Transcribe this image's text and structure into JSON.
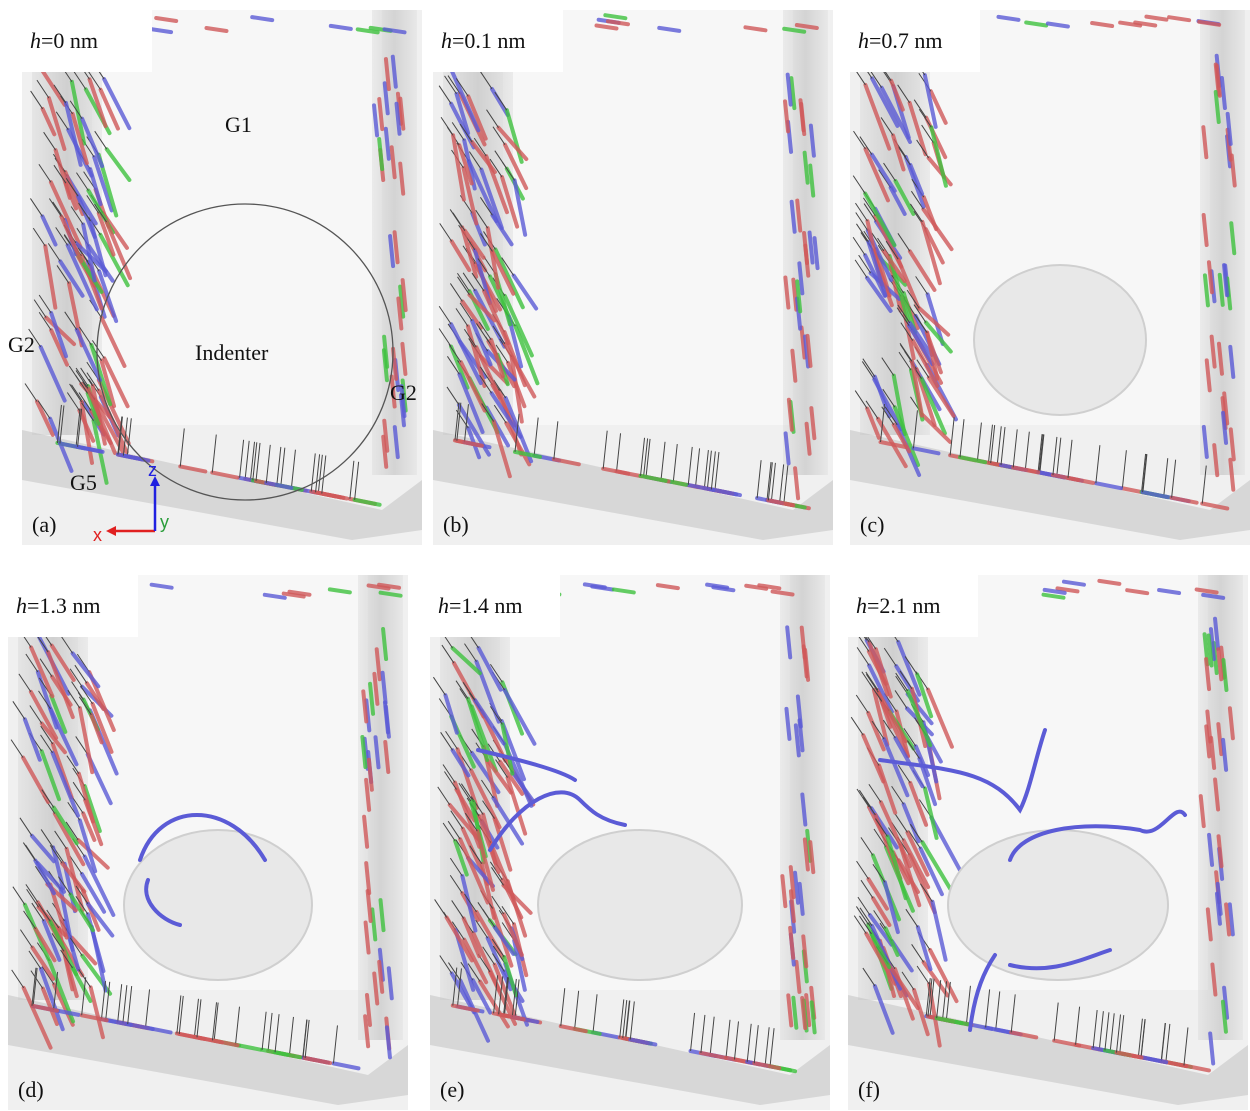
{
  "panels": [
    {
      "label": "(a)",
      "depth": {
        "variable": "h",
        "rest": "=0 nm"
      }
    },
    {
      "label": "(b)",
      "depth": {
        "variable": "h",
        "rest": "=0.1 nm"
      }
    },
    {
      "label": "(c)",
      "depth": {
        "variable": "h",
        "rest": "=0.7 nm"
      }
    },
    {
      "label": "(d)",
      "depth": {
        "variable": "h",
        "rest": "=1.3 nm"
      }
    },
    {
      "label": "(e)",
      "depth": {
        "variable": "h",
        "rest": "=1.4 nm"
      }
    },
    {
      "label": "(f)",
      "depth": {
        "variable": "h",
        "rest": "=2.1 nm"
      }
    }
  ],
  "annotations": {
    "grain_top": "G1",
    "grain_left": "G2",
    "grain_right": "G2",
    "grain_bottom": "G5",
    "indenter": "Indenter"
  },
  "axes": {
    "x": "x",
    "y": "y",
    "z": "z"
  }
}
